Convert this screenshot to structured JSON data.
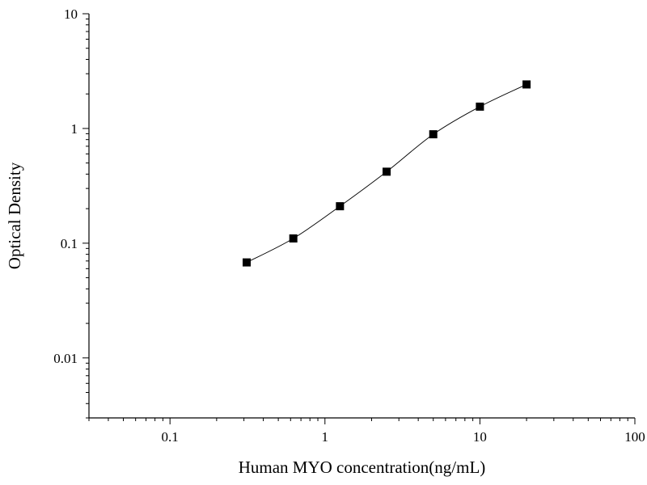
{
  "chart_data": {
    "type": "scatter",
    "scale": {
      "x": "log",
      "y": "log"
    },
    "xlabel": "Human MYO concentration(ng/mL)",
    "ylabel": "Optical Density",
    "xlim": [
      0.03,
      100
    ],
    "ylim": [
      0.003,
      10
    ],
    "x_ticks": [
      {
        "value": 0.1,
        "label": "0.1"
      },
      {
        "value": 1,
        "label": "1"
      },
      {
        "value": 10,
        "label": "10"
      },
      {
        "value": 100,
        "label": "100"
      }
    ],
    "y_ticks": [
      {
        "value": 0.01,
        "label": "0.01"
      },
      {
        "value": 0.1,
        "label": "0.1"
      },
      {
        "value": 1,
        "label": "1"
      },
      {
        "value": 10,
        "label": "10"
      }
    ],
    "grid": false,
    "legend": "none",
    "marker": "square",
    "fit_line": true,
    "series": [
      {
        "x": [
          0.3125,
          0.625,
          1.25,
          2.5,
          5,
          10,
          20
        ],
        "y": [
          0.068,
          0.11,
          0.21,
          0.42,
          0.89,
          1.55,
          2.42
        ]
      }
    ],
    "colors": {
      "marks": "#000000",
      "axes": "#000000",
      "background": "#ffffff"
    }
  }
}
